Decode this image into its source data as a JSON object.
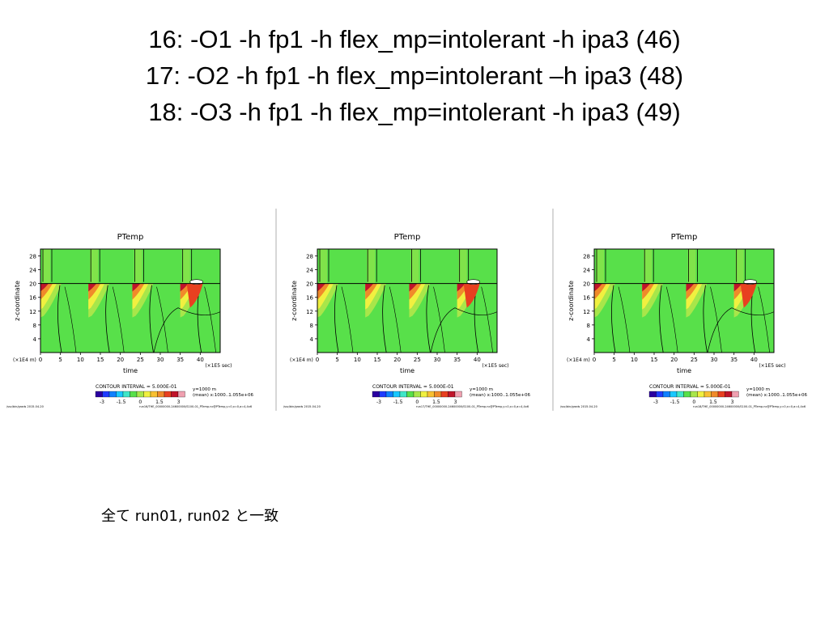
{
  "slide": {
    "title_lines": [
      "16: -O1 -h fp1 -h flex_mp=intolerant -h ipa3 (46)",
      "17: -O2 -h fp1 -h flex_mp=intolerant –h ipa3 (48)",
      "18: -O3 -h fp1 -h flex_mp=intolerant -h ipa3 (49)"
    ],
    "note": "全て run01, run02 と一致"
  },
  "colors": {
    "background": "#58e04a",
    "palette": [
      "#2b00a0",
      "#1f3cff",
      "#0f80ff",
      "#19c8ff",
      "#40e6c8",
      "#58e04a",
      "#a8e64a",
      "#f0f040",
      "#f8c032",
      "#f08a2a",
      "#e84020",
      "#c0142a",
      "#f0a0b0"
    ]
  },
  "panels": [
    {
      "title": "PTemp",
      "ylabel": "z-coordinate",
      "xlabel": "time",
      "x_multiplier": "(×1E4 m)",
      "x_unit": "(×1E5 sec)",
      "yticks": [
        "4",
        "8",
        "12",
        "16",
        "20",
        "24",
        "28"
      ],
      "xticks": [
        "0",
        "5",
        "10",
        "15",
        "20",
        "25",
        "30",
        "35",
        "40"
      ],
      "contour_interval": "CONTOUR INTERVAL = 5.000E-01",
      "info_line1": "y=1000 m",
      "info_line2": "(mean) x:1000..1.055e+06",
      "colorbar_labels": [
        "-3",
        "-1.5",
        "0",
        "1.5",
        "3"
      ],
      "footer_left": "/ssc/bin/grads  2015-04-20",
      "footer_right": "run16/THE_00000000-24600000/S100-01_PTemp.nc@PTemp,y=0,x=0,a=4,4x6"
    },
    {
      "title": "PTemp",
      "ylabel": "z-coordinate",
      "xlabel": "time",
      "x_multiplier": "(×1E4 m)",
      "x_unit": "(×1E5 sec)",
      "yticks": [
        "4",
        "8",
        "12",
        "16",
        "20",
        "24",
        "28"
      ],
      "xticks": [
        "0",
        "5",
        "10",
        "15",
        "20",
        "25",
        "30",
        "35",
        "40"
      ],
      "contour_interval": "CONTOUR INTERVAL = 5.000E-01",
      "info_line1": "y=1000 m",
      "info_line2": "(mean) x:1000..1.055e+06",
      "colorbar_labels": [
        "-3",
        "-1.5",
        "0",
        "1.5",
        "3"
      ],
      "footer_left": "/ssc/bin/grads  2015-04-20",
      "footer_right": "run17/THE_00000000-24600000/S100-01_PTemp.nc@PTemp,y=0,x=0,a=4,4x6"
    },
    {
      "title": "PTemp",
      "ylabel": "z-coordinate",
      "xlabel": "time",
      "x_multiplier": "(×1E4 m)",
      "x_unit": "(×1E5 sec)",
      "yticks": [
        "4",
        "8",
        "12",
        "16",
        "20",
        "24",
        "28"
      ],
      "xticks": [
        "0",
        "5",
        "10",
        "15",
        "20",
        "25",
        "30",
        "35",
        "40"
      ],
      "contour_interval": "CONTOUR INTERVAL = 5.000E-01",
      "info_line1": "y=1000 m",
      "info_line2": "(mean) x:1000..1.055e+06",
      "colorbar_labels": [
        "-3",
        "-1.5",
        "0",
        "1.5",
        "3"
      ],
      "footer_left": "/ssc/bin/grads  2015-04-20",
      "footer_right": "run18/THE_00000000-24600000/S100-01_PTemp.nc@PTemp,y=0,x=0,a=4,4x6"
    }
  ]
}
